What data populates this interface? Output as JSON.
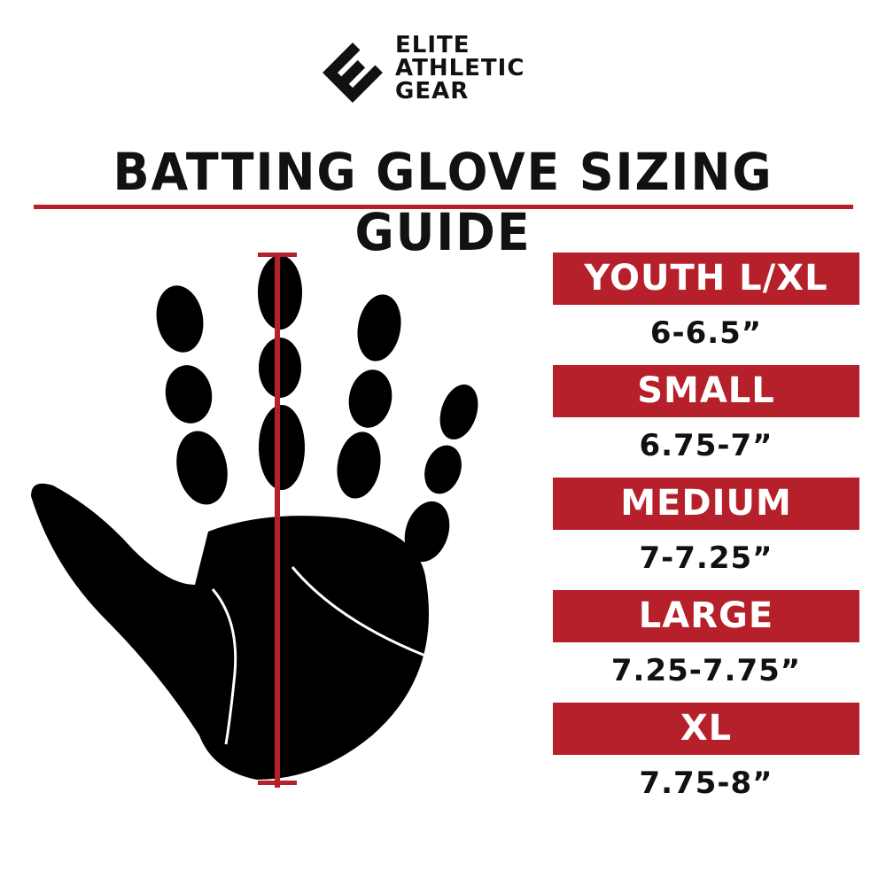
{
  "brand": {
    "line1": "ELITE",
    "line2": "ATHLETIC",
    "line3": "GEAR"
  },
  "title": "BATTING GLOVE SIZING GUIDE",
  "colors": {
    "accent": "#b5202a",
    "text": "#111111"
  },
  "sizes": [
    {
      "label": "YOUTH L/XL",
      "range": "6-6.5”"
    },
    {
      "label": "SMALL",
      "range": "6.75-7”"
    },
    {
      "label": "MEDIUM",
      "range": "7-7.25”"
    },
    {
      "label": "LARGE",
      "range": "7.25-7.75”"
    },
    {
      "label": "XL",
      "range": "7.75-8”"
    }
  ]
}
